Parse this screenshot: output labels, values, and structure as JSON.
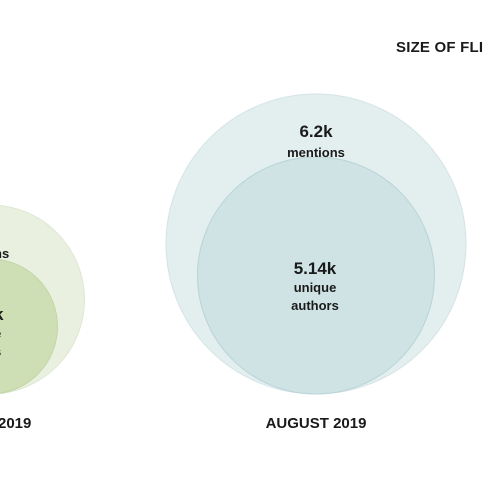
{
  "chart_data": {
    "type": "bubble",
    "title": "SIZE OF FLI",
    "colors": {
      "left_outer_fill": "#e9f0df",
      "left_outer_stroke": "#dfe8d2",
      "left_inner_fill": "#cfdfb5",
      "left_inner_stroke": "#c2d6a5",
      "right_outer_fill": "#e3eeef",
      "right_outer_stroke": "#d4e4e6",
      "right_inner_fill": "#cfe3e5",
      "right_inner_stroke": "#b8d4d7",
      "text": "#1a1a1a"
    },
    "groups": [
      {
        "period": "2019",
        "outer": {
          "value_text": "",
          "caption": [
            "ns"
          ],
          "relative_size": 0.63
        },
        "inner": {
          "value_text": "k",
          "caption": [
            "e",
            "s"
          ],
          "relative_size": 0.45
        }
      },
      {
        "period": "AUGUST 2019",
        "outer": {
          "value_text": "6.2k",
          "caption": [
            "mentions"
          ],
          "relative_size": 1.0
        },
        "inner": {
          "value_text": "5.14k",
          "caption": [
            "unique",
            "authors"
          ],
          "relative_size": 0.79
        }
      }
    ]
  }
}
